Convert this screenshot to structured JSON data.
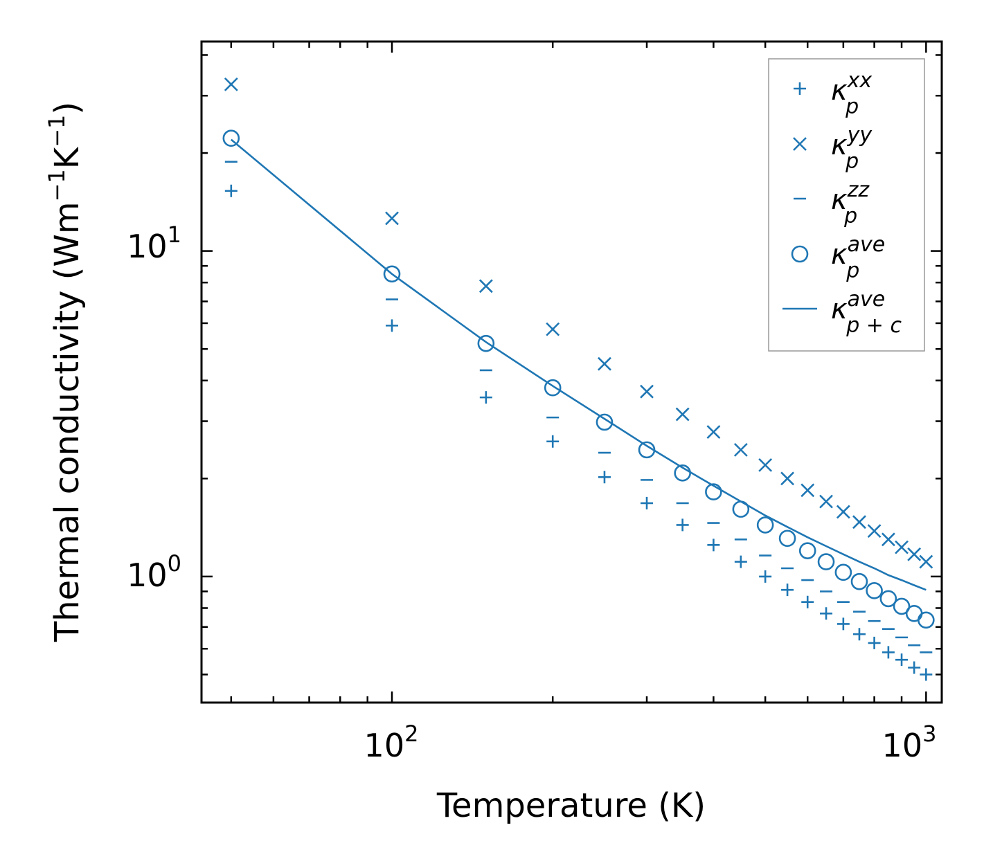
{
  "chart_data": {
    "type": "scatter",
    "xscale": "log",
    "yscale": "log",
    "xlabel": "Temperature (K)",
    "ylabel": {
      "base": "Thermal conductivity (Wm",
      "sup1": "−1",
      "mid": "K",
      "sup2": "−1",
      "end": ")"
    },
    "xlim": [
      44,
      1070
    ],
    "ylim": [
      0.41,
      44
    ],
    "xticks": [
      {
        "base": "10",
        "exp": "2",
        "value": 100
      },
      {
        "base": "10",
        "exp": "3",
        "value": 1000
      }
    ],
    "yticks": [
      {
        "base": "10",
        "exp": "0",
        "value": 1
      },
      {
        "base": "10",
        "exp": "1",
        "value": 10
      }
    ],
    "legend_position": "top-right",
    "x": [
      50,
      100,
      150,
      200,
      250,
      300,
      350,
      400,
      450,
      500,
      550,
      600,
      650,
      700,
      750,
      800,
      850,
      900,
      950,
      1000
    ],
    "series": [
      {
        "name": "kappa_p_xx",
        "label": {
          "base": "κ",
          "sup": "xx",
          "sub": "p"
        },
        "marker": "plus",
        "color": "#1f77b4",
        "values": [
          15.3,
          5.9,
          3.55,
          2.6,
          2.02,
          1.68,
          1.44,
          1.25,
          1.11,
          1.0,
          0.91,
          0.835,
          0.77,
          0.715,
          0.665,
          0.625,
          0.585,
          0.555,
          0.525,
          0.5
        ]
      },
      {
        "name": "kappa_p_yy",
        "label": {
          "base": "κ",
          "sup": "yy",
          "sub": "p"
        },
        "marker": "x",
        "color": "#1f77b4",
        "values": [
          32.5,
          12.6,
          7.8,
          5.75,
          4.5,
          3.7,
          3.15,
          2.78,
          2.45,
          2.2,
          2.0,
          1.84,
          1.7,
          1.58,
          1.47,
          1.38,
          1.3,
          1.23,
          1.17,
          1.11
        ]
      },
      {
        "name": "kappa_p_zz",
        "label": {
          "base": "κ",
          "sup": "zz",
          "sub": "p"
        },
        "marker": "hline",
        "color": "#1f77b4",
        "values": [
          18.8,
          7.1,
          4.3,
          3.08,
          2.4,
          1.98,
          1.68,
          1.46,
          1.3,
          1.16,
          1.06,
          0.975,
          0.9,
          0.835,
          0.78,
          0.73,
          0.69,
          0.65,
          0.615,
          0.585
        ]
      },
      {
        "name": "kappa_p_ave",
        "label": {
          "base": "κ",
          "sup": "ave",
          "sub": "p"
        },
        "marker": "circle",
        "color": "#1f77b4",
        "values": [
          22.2,
          8.5,
          5.2,
          3.8,
          2.98,
          2.45,
          2.08,
          1.82,
          1.61,
          1.44,
          1.31,
          1.2,
          1.11,
          1.03,
          0.965,
          0.905,
          0.855,
          0.81,
          0.77,
          0.735
        ]
      },
      {
        "name": "kappa_pc_ave",
        "label": {
          "base": "κ",
          "sup": "ave",
          "sub": "p + c"
        },
        "marker": "line",
        "color": "#1f77b4",
        "values": [
          22.0,
          8.5,
          5.25,
          3.85,
          3.05,
          2.52,
          2.16,
          1.9,
          1.7,
          1.54,
          1.42,
          1.32,
          1.24,
          1.17,
          1.11,
          1.06,
          1.01,
          0.975,
          0.94,
          0.91
        ]
      }
    ]
  }
}
